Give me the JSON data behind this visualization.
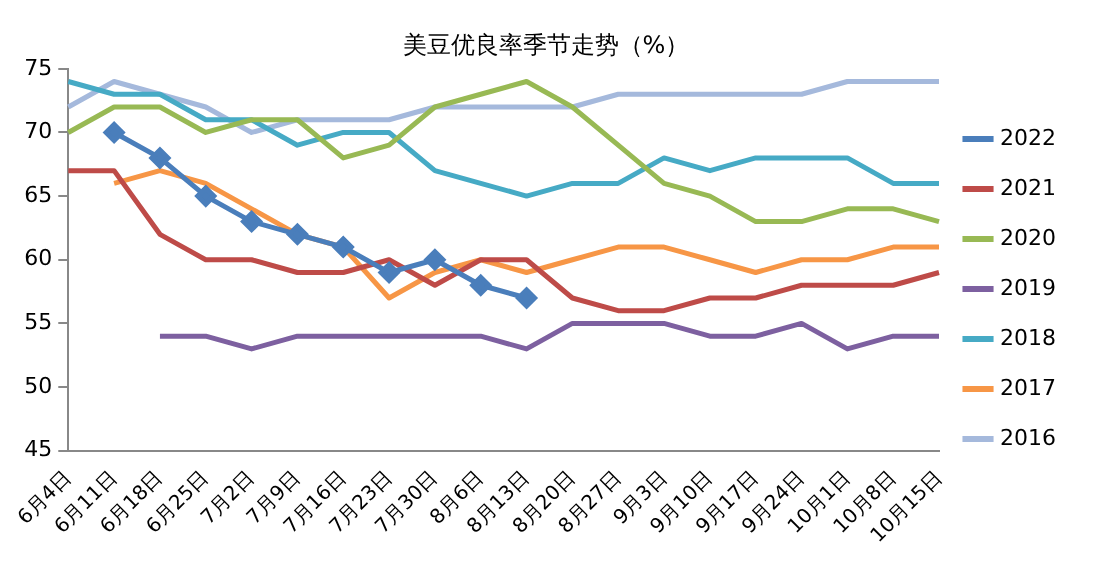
{
  "chart_data": {
    "type": "line",
    "title": "美豆优良率季节走势（%）",
    "categories": [
      "6月4日",
      "6月11日",
      "6月18日",
      "6月25日",
      "7月2日",
      "7月9日",
      "7月16日",
      "7月23日",
      "7月30日",
      "8月6日",
      "8月13日",
      "8月20日",
      "8月27日",
      "9月3日",
      "9月10日",
      "9月17日",
      "9月24日",
      "10月1日",
      "10月8日",
      "10月15日"
    ],
    "series": [
      {
        "name": "2022",
        "color": "#4a7ebb",
        "marker": "diamond",
        "values": [
          null,
          70,
          68,
          65,
          63,
          62,
          61,
          59,
          60,
          58,
          57,
          null,
          null,
          null,
          null,
          null,
          null,
          null,
          null,
          null
        ]
      },
      {
        "name": "2021",
        "color": "#be4b48",
        "values": [
          67,
          67,
          62,
          60,
          60,
          59,
          59,
          60,
          58,
          60,
          60,
          57,
          56,
          56,
          57,
          57,
          58,
          58,
          58,
          59
        ]
      },
      {
        "name": "2020",
        "color": "#98b954",
        "values": [
          70,
          72,
          72,
          70,
          71,
          71,
          68,
          69,
          72,
          73,
          74,
          72,
          69,
          66,
          65,
          63,
          63,
          64,
          64,
          63
        ]
      },
      {
        "name": "2019",
        "color": "#7d60a0",
        "values": [
          null,
          null,
          54,
          54,
          53,
          54,
          54,
          54,
          54,
          54,
          53,
          55,
          55,
          55,
          54,
          54,
          55,
          53,
          54,
          54
        ]
      },
      {
        "name": "2018",
        "color": "#46aac5",
        "values": [
          74,
          73,
          73,
          71,
          71,
          69,
          70,
          70,
          67,
          66,
          65,
          66,
          66,
          68,
          67,
          68,
          68,
          68,
          66,
          66
        ]
      },
      {
        "name": "2017",
        "color": "#f79646",
        "values": [
          null,
          66,
          67,
          66,
          64,
          62,
          61,
          57,
          59,
          60,
          59,
          60,
          61,
          61,
          60,
          59,
          60,
          60,
          61,
          61
        ]
      },
      {
        "name": "2016",
        "color": "#a5b9dc",
        "values": [
          72,
          74,
          73,
          72,
          70,
          71,
          71,
          71,
          72,
          72,
          72,
          72,
          73,
          73,
          73,
          73,
          73,
          74,
          74,
          74
        ]
      }
    ],
    "marker": "none",
    "line_style": "solid",
    "ylim": [
      45,
      75
    ],
    "yticks": [
      45,
      50,
      55,
      60,
      65,
      70,
      75
    ],
    "grid": false,
    "legend": "right"
  }
}
